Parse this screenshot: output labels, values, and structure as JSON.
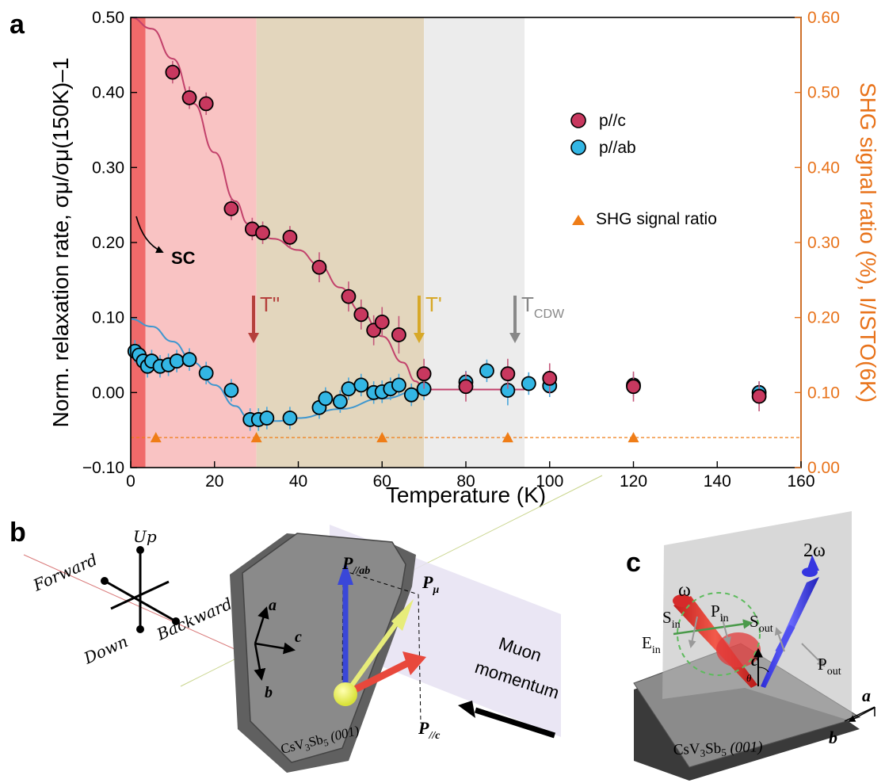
{
  "chart_data": {
    "type": "scatter",
    "panel": "a",
    "xlabel": "Temperature (K)",
    "ylabel": "Norm. relaxation rate, σμ/σμ(150K)–1",
    "ylabel_right": "SHG signal ratio (%), I/ISTO(6K)",
    "xlim": [
      0,
      160
    ],
    "ylim": [
      -0.1,
      0.5
    ],
    "ylim_right": [
      0.0,
      0.6
    ],
    "xticks": [
      "0",
      "20",
      "40",
      "60",
      "80",
      "100",
      "120",
      "140",
      "160"
    ],
    "yticks": [
      "−0.10",
      "0.00",
      "0.10",
      "0.20",
      "0.30",
      "0.40",
      "0.50"
    ],
    "yticks_right": [
      "0.00",
      "0.10",
      "0.20",
      "0.30",
      "0.40",
      "0.50",
      "0.60"
    ],
    "legend": {
      "position": "right",
      "entries": [
        "p//c",
        "p//ab",
        "SHG  signal ratio"
      ]
    },
    "colors": {
      "pc": "#c8385f",
      "pab": "#33b6e4",
      "shg": "#ef7d17",
      "fit_pc": "#c2416b",
      "fit_pab": "#3f97cf"
    },
    "regions": [
      {
        "x": [
          0,
          3.5
        ],
        "color": "#f06a6a"
      },
      {
        "x": [
          3.5,
          30
        ],
        "color": "#f9c3c3"
      },
      {
        "x": [
          30,
          70
        ],
        "color": "#e3d6bd"
      },
      {
        "x": [
          70,
          94
        ],
        "color": "#ececec"
      }
    ],
    "annotations": [
      {
        "text": "SC",
        "x": 7,
        "y": 0.19
      },
      {
        "text": "T\"",
        "x": 30,
        "y": 0.1,
        "color": "#b5403c"
      },
      {
        "text": "T'",
        "x": 70,
        "y": 0.1,
        "color": "#d7a828"
      },
      {
        "text": "T",
        "sub": "CDW",
        "x": 94,
        "y": 0.1,
        "color": "#888888"
      }
    ],
    "series": [
      {
        "name": "p//c",
        "x": [
          10,
          14,
          18,
          24,
          29,
          31.5,
          38,
          45,
          52,
          55,
          58,
          60,
          64,
          70,
          80,
          90,
          100,
          120,
          150
        ],
        "y": [
          0.427,
          0.393,
          0.385,
          0.245,
          0.218,
          0.213,
          0.207,
          0.167,
          0.128,
          0.104,
          0.083,
          0.094,
          0.077,
          0.025,
          0.008,
          0.025,
          0.019,
          0.008,
          -0.005
        ],
        "err": [
          0.015,
          0.015,
          0.015,
          0.015,
          0.015,
          0.015,
          0.015,
          0.02,
          0.02,
          0.02,
          0.02,
          0.02,
          0.025,
          0.02,
          0.02,
          0.02,
          0.02,
          0.02,
          0.02
        ]
      },
      {
        "name": "p//ab",
        "x": [
          1,
          2,
          3,
          4,
          5,
          7,
          9,
          11,
          14,
          18,
          24,
          28.5,
          30.5,
          32.5,
          38,
          45,
          46.5,
          50,
          52,
          55,
          58,
          60,
          62,
          64,
          67,
          70,
          80,
          85,
          90,
          95,
          100,
          120,
          150
        ],
        "y": [
          0.055,
          0.05,
          0.042,
          0.035,
          0.042,
          0.035,
          0.037,
          0.042,
          0.044,
          0.026,
          0.003,
          -0.036,
          -0.036,
          -0.034,
          -0.034,
          -0.02,
          -0.008,
          -0.012,
          0.005,
          0.01,
          0.0,
          0.001,
          0.005,
          0.01,
          -0.003,
          0.005,
          0.014,
          0.029,
          0.003,
          0.012,
          0.009,
          0.01,
          0.0
        ],
        "err": [
          0.015,
          0.015,
          0.015,
          0.015,
          0.015,
          0.015,
          0.015,
          0.015,
          0.015,
          0.015,
          0.015,
          0.015,
          0.015,
          0.015,
          0.015,
          0.015,
          0.015,
          0.015,
          0.015,
          0.015,
          0.015,
          0.015,
          0.015,
          0.015,
          0.015,
          0.015,
          0.015,
          0.015,
          0.02,
          0.015,
          0.015,
          0.015,
          0.015
        ]
      },
      {
        "name": "SHG  signal ratio",
        "axis": "right",
        "x": [
          6,
          30,
          60,
          90,
          120
        ],
        "y": [
          0.04,
          0.04,
          0.04,
          0.04,
          0.04
        ]
      }
    ],
    "fits": [
      {
        "series": "p//c",
        "x": [
          0,
          5,
          10,
          15,
          20,
          25,
          28,
          30,
          34,
          40,
          45,
          50,
          55,
          60,
          65,
          68,
          70,
          80,
          90,
          94
        ],
        "y": [
          0.5,
          0.485,
          0.445,
          0.385,
          0.32,
          0.255,
          0.225,
          0.212,
          0.205,
          0.19,
          0.17,
          0.14,
          0.108,
          0.075,
          0.04,
          0.015,
          0.004,
          0.004,
          0.004,
          0.004
        ]
      },
      {
        "series": "p//ab",
        "x": [
          0,
          5,
          10,
          15,
          20,
          25,
          28,
          30,
          35,
          40,
          50,
          60,
          70
        ],
        "y": [
          0.098,
          0.088,
          0.068,
          0.04,
          0.01,
          -0.018,
          -0.033,
          -0.037,
          -0.038,
          -0.034,
          -0.022,
          -0.008,
          0.005
        ]
      }
    ],
    "shg_reference_line": {
      "y_right": 0.04,
      "style": "dashed"
    }
  },
  "panel_b": {
    "letter": "b",
    "directions": {
      "up": "Up",
      "down": "Down",
      "forward": "Forward",
      "backward": "Backward"
    },
    "labels": {
      "p_ab": "P",
      "p_ab_sub": "//ab",
      "p_mu": "P",
      "p_mu_sub": "μ",
      "p_c": "P",
      "p_c_sub": "//c",
      "a": "a",
      "b": "b",
      "c": "c",
      "muon1": "Muon",
      "muon2": "momentum",
      "crystal": "CsV",
      "crystal_sub1": "3",
      "crystal_mid": "Sb",
      "crystal_sub2": "5",
      "crystal_face": " (001)"
    }
  },
  "panel_c": {
    "letter": "c",
    "labels": {
      "omega": "ω",
      "two_omega": "2ω",
      "s_in": "S",
      "s_in_sub": "in",
      "p_in": "P",
      "p_in_sub": "in",
      "e_in": "E",
      "e_in_sub": "in",
      "s_out": "S",
      "s_out_sub": "out",
      "p_out": "P",
      "p_out_sub": "out",
      "c": "c",
      "theta": "θ",
      "a": "a",
      "b": "b",
      "crystal": "CsV",
      "crystal_sub1": "3",
      "crystal_mid": "Sb",
      "crystal_sub2": "5",
      "crystal_face": " (001)"
    }
  }
}
